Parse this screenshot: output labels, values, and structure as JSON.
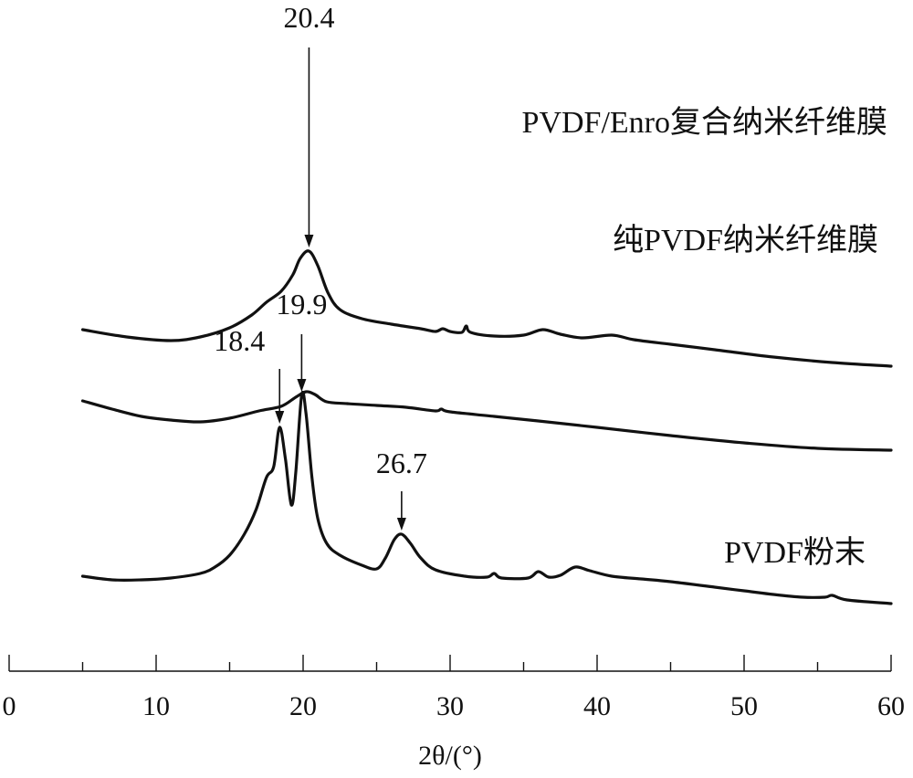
{
  "chart_data": {
    "type": "line",
    "title": "",
    "xlabel": "2θ/(°)",
    "ylabel": "",
    "xlim": [
      0,
      60
    ],
    "x_ticks": [
      "0",
      "10",
      "20",
      "30",
      "40",
      "50",
      "60"
    ],
    "grid": false,
    "legend": "none",
    "series": [
      {
        "name": "PVDF/Enro复合纳米纤维膜",
        "offset": 2.6,
        "points": [
          [
            5,
            0.42
          ],
          [
            8,
            0.34
          ],
          [
            11,
            0.3
          ],
          [
            13,
            0.34
          ],
          [
            15,
            0.44
          ],
          [
            16.5,
            0.58
          ],
          [
            17.5,
            0.72
          ],
          [
            18.5,
            0.84
          ],
          [
            19.3,
            1.02
          ],
          [
            19.8,
            1.2
          ],
          [
            20.4,
            1.28
          ],
          [
            21,
            1.12
          ],
          [
            21.7,
            0.82
          ],
          [
            22.5,
            0.64
          ],
          [
            24,
            0.54
          ],
          [
            26,
            0.48
          ],
          [
            28,
            0.43
          ],
          [
            29,
            0.4
          ],
          [
            29.5,
            0.43
          ],
          [
            30,
            0.4
          ],
          [
            30.8,
            0.39
          ],
          [
            31.1,
            0.46
          ],
          [
            31.4,
            0.39
          ],
          [
            33,
            0.35
          ],
          [
            35,
            0.36
          ],
          [
            36.3,
            0.42
          ],
          [
            37.5,
            0.37
          ],
          [
            39,
            0.33
          ],
          [
            41,
            0.36
          ],
          [
            42.5,
            0.31
          ],
          [
            45,
            0.26
          ],
          [
            48,
            0.2
          ],
          [
            52,
            0.12
          ],
          [
            56,
            0.06
          ],
          [
            60,
            0.02
          ]
        ]
      },
      {
        "name": "纯PVDF纳米纤维膜",
        "offset": 1.6,
        "points": [
          [
            5,
            0.64
          ],
          [
            7,
            0.55
          ],
          [
            9,
            0.47
          ],
          [
            11,
            0.43
          ],
          [
            13,
            0.41
          ],
          [
            15,
            0.45
          ],
          [
            17,
            0.53
          ],
          [
            18.5,
            0.58
          ],
          [
            19.5,
            0.68
          ],
          [
            20.2,
            0.74
          ],
          [
            20.8,
            0.71
          ],
          [
            21.6,
            0.63
          ],
          [
            23,
            0.61
          ],
          [
            25,
            0.59
          ],
          [
            27,
            0.57
          ],
          [
            29,
            0.53
          ],
          [
            29.4,
            0.55
          ],
          [
            30,
            0.52
          ],
          [
            33,
            0.47
          ],
          [
            36,
            0.42
          ],
          [
            40,
            0.35
          ],
          [
            45,
            0.26
          ],
          [
            50,
            0.18
          ],
          [
            55,
            0.12
          ],
          [
            60,
            0.1
          ]
        ]
      },
      {
        "name": "PVDF粉末",
        "offset": 0,
        "points": [
          [
            5,
            0.32
          ],
          [
            7,
            0.28
          ],
          [
            9,
            0.28
          ],
          [
            11,
            0.3
          ],
          [
            13,
            0.35
          ],
          [
            14,
            0.42
          ],
          [
            15,
            0.55
          ],
          [
            16,
            0.78
          ],
          [
            16.8,
            1.05
          ],
          [
            17.5,
            1.4
          ],
          [
            18,
            1.52
          ],
          [
            18.4,
            1.95
          ],
          [
            18.8,
            1.6
          ],
          [
            19.2,
            1.1
          ],
          [
            19.5,
            1.45
          ],
          [
            19.9,
            2.3
          ],
          [
            20.2,
            2.1
          ],
          [
            20.6,
            1.4
          ],
          [
            21,
            0.95
          ],
          [
            21.6,
            0.68
          ],
          [
            22.5,
            0.55
          ],
          [
            24,
            0.44
          ],
          [
            25,
            0.4
          ],
          [
            25.6,
            0.52
          ],
          [
            26.2,
            0.72
          ],
          [
            26.7,
            0.78
          ],
          [
            27.3,
            0.68
          ],
          [
            28,
            0.52
          ],
          [
            29,
            0.39
          ],
          [
            31,
            0.32
          ],
          [
            32.5,
            0.31
          ],
          [
            33,
            0.35
          ],
          [
            33.5,
            0.3
          ],
          [
            35.3,
            0.3
          ],
          [
            36,
            0.37
          ],
          [
            36.7,
            0.31
          ],
          [
            37.5,
            0.33
          ],
          [
            38.5,
            0.42
          ],
          [
            39.5,
            0.38
          ],
          [
            41,
            0.32
          ],
          [
            43,
            0.29
          ],
          [
            45,
            0.26
          ],
          [
            48,
            0.2
          ],
          [
            50,
            0.16
          ],
          [
            52,
            0.12
          ],
          [
            54,
            0.09
          ],
          [
            55.5,
            0.09
          ],
          [
            56,
            0.11
          ],
          [
            57,
            0.06
          ],
          [
            60,
            0.02
          ]
        ]
      }
    ],
    "annotations": [
      {
        "label": "20.4",
        "x": 20.4,
        "series": 0
      },
      {
        "label": "18.4",
        "x": 18.4,
        "series": 2
      },
      {
        "label": "19.9",
        "x": 19.9,
        "series": 2
      },
      {
        "label": "26.7",
        "x": 26.7,
        "series": 2
      }
    ]
  }
}
